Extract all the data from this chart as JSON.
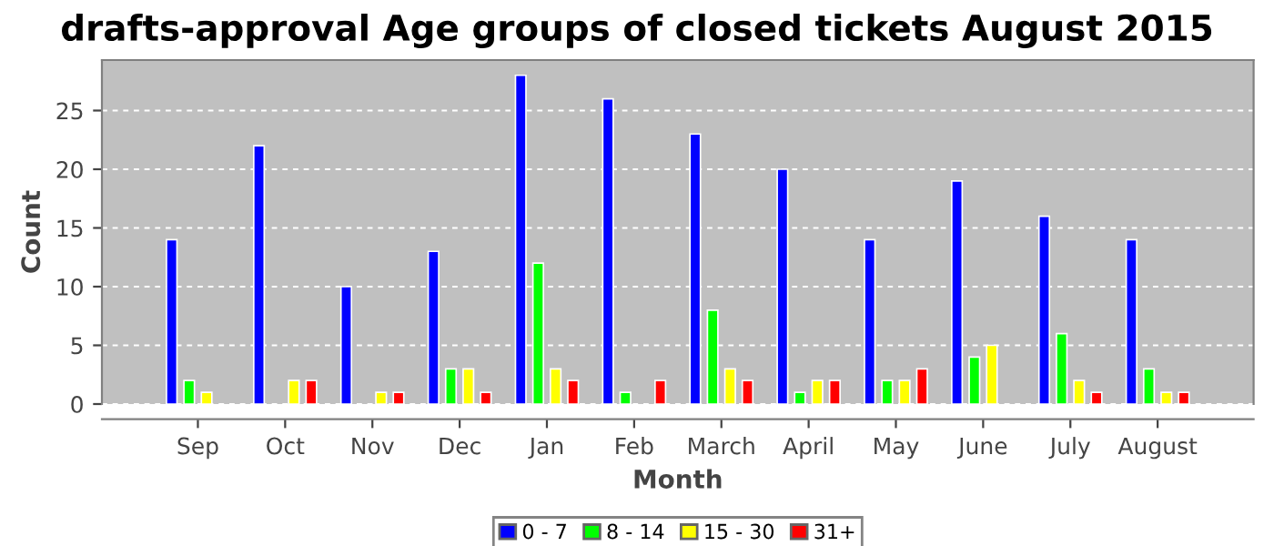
{
  "chart_data": {
    "type": "bar",
    "title": "drafts-approval Age groups of closed tickets August 2015",
    "xlabel": "Month",
    "ylabel": "Count",
    "categories": [
      "Sep",
      "Oct",
      "Nov",
      "Dec",
      "Jan",
      "Feb",
      "March",
      "April",
      "May",
      "June",
      "July",
      "August"
    ],
    "series": [
      {
        "name": "0 - 7",
        "color": "#0000ff",
        "values": [
          14,
          22,
          10,
          13,
          28,
          26,
          23,
          20,
          14,
          19,
          16,
          14
        ]
      },
      {
        "name": "8 - 14",
        "color": "#00ff00",
        "values": [
          2,
          0,
          0,
          3,
          12,
          1,
          8,
          1,
          2,
          4,
          6,
          3
        ]
      },
      {
        "name": "15 - 30",
        "color": "#ffff00",
        "values": [
          1,
          2,
          1,
          3,
          3,
          0,
          3,
          2,
          2,
          5,
          2,
          1
        ]
      },
      {
        "name": "31+",
        "color": "#ff0000",
        "values": [
          0,
          2,
          1,
          1,
          2,
          2,
          2,
          2,
          3,
          0,
          1,
          1
        ]
      }
    ],
    "ylim": [
      0,
      29.3
    ],
    "yticks": [
      0,
      5,
      10,
      15,
      20,
      25
    ],
    "grid": "y",
    "legend": "bottom"
  }
}
